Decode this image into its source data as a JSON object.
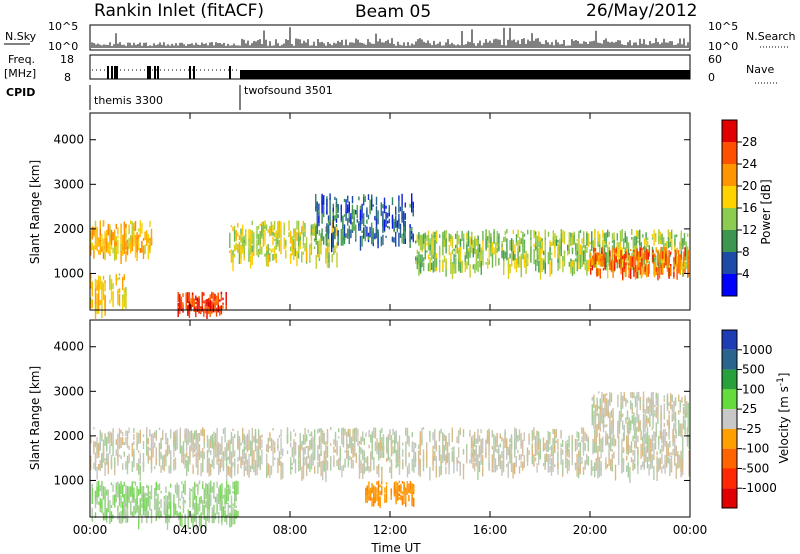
{
  "header": {
    "station": "Rankin Inlet (fitACF)",
    "beam": "Beam 05",
    "date": "26/May/2012"
  },
  "summary_panel": {
    "left_top_label": "N.Sky",
    "left_top_ticks": [
      "10^5",
      "10^0"
    ],
    "right_top_label": "N.Search",
    "right_top_ticks": [
      "10^5",
      "10^0"
    ],
    "left_mid_label": "Freq.",
    "left_mid_unit": "[MHz]",
    "left_mid_ticks": [
      "18",
      "8"
    ],
    "right_mid_label": "Nave",
    "right_mid_ticks": [
      "60",
      "0"
    ],
    "cpid_label": "CPID",
    "cpid_modes": [
      {
        "name": "themis 3300",
        "start_hour": 0
      },
      {
        "name": "twofsound 3501",
        "start_hour": 6
      }
    ]
  },
  "power_colorbar": {
    "label": "Power [dB]",
    "ticks": [
      "28",
      "24",
      "20",
      "16",
      "12",
      "8",
      "4"
    ],
    "colors": [
      "#e00000",
      "#ff5000",
      "#ff9600",
      "#ffd200",
      "#8ccc50",
      "#3c9650",
      "#1e4ba8",
      "#0000ff"
    ]
  },
  "velocity_colorbar": {
    "label": "Velocity [m s-1]",
    "label_main": "Velocity [m s",
    "label_sup": "-1",
    "label_end": "]",
    "ticks": [
      "1000",
      "500",
      "100",
      "25",
      "-25",
      "-100",
      "-500",
      "-1000"
    ],
    "colors": [
      "#1e3cb4",
      "#28648c",
      "#28a03c",
      "#64dc3c",
      "#c8c8c8",
      "#ffa000",
      "#ff6400",
      "#ff2800",
      "#e10000"
    ]
  },
  "chart_data": [
    {
      "type": "heatmap",
      "title": "Power",
      "ylabel": "Slant Range [km]",
      "xlabel": "Time UT",
      "xlim": [
        0,
        24
      ],
      "ylim": [
        180,
        4600
      ],
      "x_ticks": [
        "00:00",
        "04:00",
        "08:00",
        "12:00",
        "16:00",
        "20:00",
        "00:00"
      ],
      "y_ticks": [
        1000,
        2000,
        3000,
        4000
      ],
      "colorbar_range": [
        0,
        32
      ],
      "echo_regions": [
        {
          "t0": 0.0,
          "t1": 2.5,
          "r0": 1500,
          "r1": 2200,
          "value": 20
        },
        {
          "t0": 0.0,
          "t1": 1.5,
          "r0": 300,
          "r1": 1000,
          "value": 18
        },
        {
          "t0": 3.5,
          "t1": 5.5,
          "r0": 200,
          "r1": 600,
          "value": 30
        },
        {
          "t0": 5.5,
          "t1": 10.0,
          "r0": 1400,
          "r1": 2200,
          "value": 16
        },
        {
          "t0": 9.0,
          "t1": 13.0,
          "r0": 1800,
          "r1": 2800,
          "value": 6
        },
        {
          "t0": 13.0,
          "t1": 24.0,
          "r0": 1200,
          "r1": 2000,
          "value": 14
        },
        {
          "t0": 20.0,
          "t1": 24.0,
          "r0": 1100,
          "r1": 1600,
          "value": 26
        }
      ]
    },
    {
      "type": "heatmap",
      "title": "Velocity",
      "ylabel": "Slant Range [km]",
      "xlabel": "Time UT",
      "xlim": [
        0,
        24
      ],
      "ylim": [
        180,
        4600
      ],
      "x_ticks": [
        "00:00",
        "04:00",
        "08:00",
        "12:00",
        "16:00",
        "20:00",
        "00:00"
      ],
      "y_ticks": [
        1000,
        2000,
        3000,
        4000
      ],
      "colorbar_range": [
        -1000,
        1000
      ],
      "echo_regions": [
        {
          "t0": 0.0,
          "t1": 24.0,
          "r0": 1300,
          "r1": 2200,
          "value": 0
        },
        {
          "t0": 0.0,
          "t1": 6.0,
          "r0": 200,
          "r1": 1000,
          "value": 120
        },
        {
          "t0": 11.0,
          "t1": 13.0,
          "r0": 600,
          "r1": 1000,
          "value": -300
        },
        {
          "t0": 20.0,
          "t1": 24.0,
          "r0": 2200,
          "r1": 3000,
          "value": 0
        }
      ]
    }
  ],
  "footer": {
    "xlabel": "Time UT"
  }
}
